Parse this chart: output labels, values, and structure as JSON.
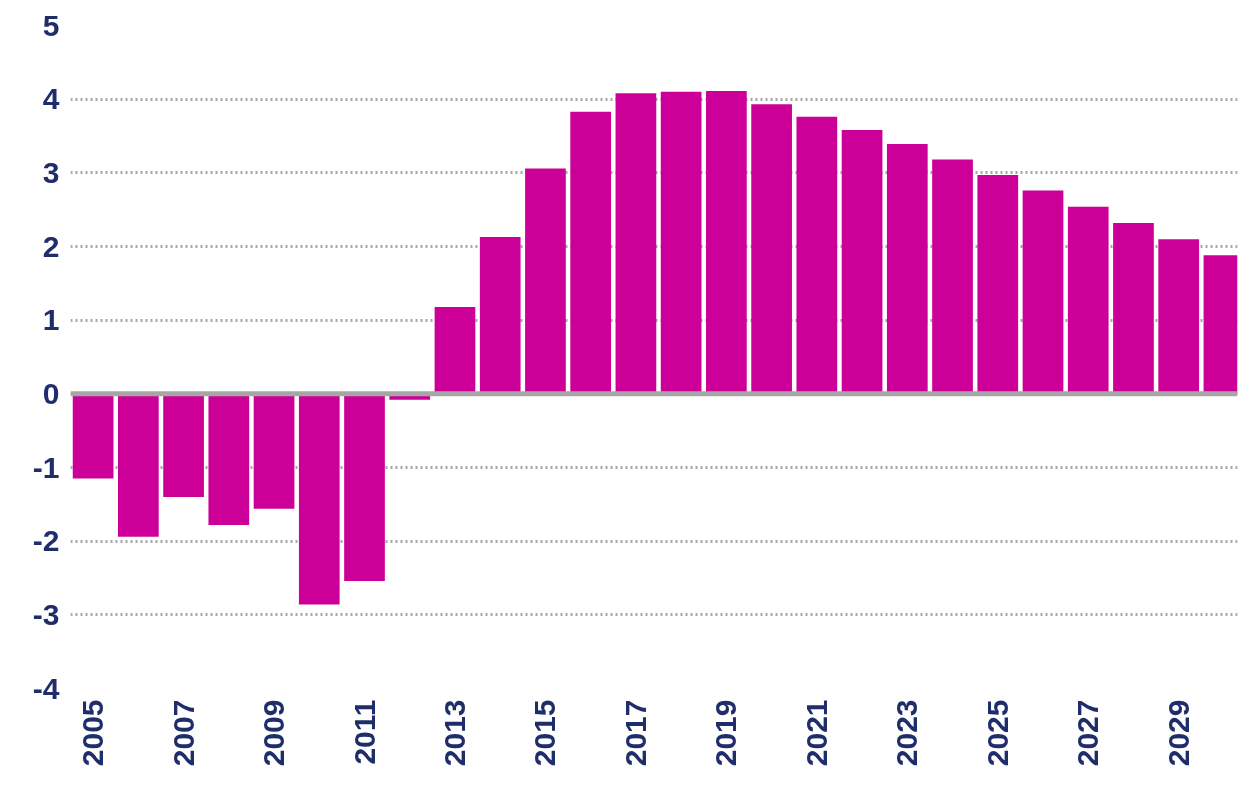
{
  "chart_data": {
    "type": "bar",
    "x": [
      2005,
      2006,
      2007,
      2008,
      2009,
      2010,
      2011,
      2012,
      2013,
      2014,
      2015,
      2016,
      2017,
      2018,
      2019,
      2020,
      2021,
      2022,
      2023,
      2024,
      2025,
      2026,
      2027,
      2028,
      2029,
      2030
    ],
    "series": [
      {
        "color": "#cc0099",
        "values": [
          -1.15,
          -1.94,
          -1.4,
          -1.78,
          -1.56,
          -2.86,
          -2.54,
          -0.08,
          1.18,
          2.13,
          3.06,
          3.83,
          4.08,
          4.1,
          4.11,
          3.93,
          3.76,
          3.58,
          3.39,
          3.18,
          2.97,
          2.76,
          2.54,
          2.32,
          2.1,
          1.88
        ]
      }
    ],
    "xlim": [
      2004.5,
      2030.3
    ],
    "xticks": [
      2005,
      2007,
      2009,
      2011,
      2013,
      2015,
      2017,
      2019,
      2021,
      2023,
      2025,
      2027,
      2029
    ],
    "ylim": [
      -4,
      5
    ],
    "yticks": [
      -4,
      -3,
      -2,
      -1,
      0,
      1,
      2,
      3,
      4,
      5
    ],
    "grid": "y",
    "ref_lines": [
      {
        "axis": "y",
        "value": 0,
        "color": "#a6a6a6"
      }
    ]
  }
}
